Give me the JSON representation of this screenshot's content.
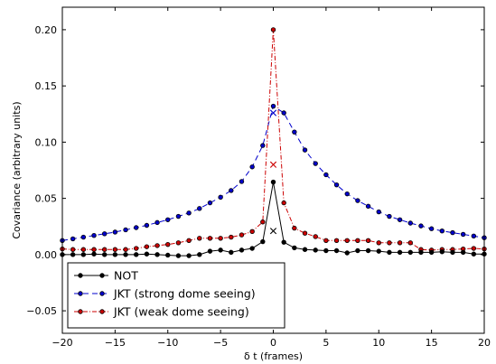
{
  "chart_data": {
    "type": "line",
    "title": "",
    "xlabel": "δ t (frames)",
    "ylabel": "Covariance (arbitrary units)",
    "xlim": [
      -20,
      20
    ],
    "ylim": [
      -0.07,
      0.22
    ],
    "xticks": [
      -20,
      -15,
      -10,
      -5,
      0,
      5,
      10,
      15,
      20
    ],
    "xtick_labels": [
      "−20",
      "−15",
      "−10",
      "−5",
      "0",
      "5",
      "10",
      "15",
      "20"
    ],
    "yticks": [
      -0.05,
      0.0,
      0.05,
      0.1,
      0.15,
      0.2
    ],
    "ytick_labels": [
      "−0.05",
      "0.00",
      "0.05",
      "0.10",
      "0.15",
      "0.20"
    ],
    "grid": false,
    "legend_position": "lower-left",
    "x": [
      -20,
      -19,
      -18,
      -17,
      -16,
      -15,
      -14,
      -13,
      -12,
      -11,
      -10,
      -9,
      -8,
      -7,
      -6,
      -5,
      -4,
      -3,
      -2,
      -1,
      0,
      1,
      2,
      3,
      4,
      5,
      6,
      7,
      8,
      9,
      10,
      11,
      12,
      13,
      14,
      15,
      16,
      17,
      18,
      19,
      20
    ],
    "series": [
      {
        "name": "NOT",
        "color": "#000000",
        "line_style": "solid",
        "values": [
          0.0,
          0.0,
          0.0,
          0.0005,
          0.0,
          0.0,
          0.0,
          0.0,
          0.0005,
          0.0,
          -0.0005,
          -0.001,
          -0.001,
          0.0,
          0.003,
          0.004,
          0.002,
          0.004,
          0.0055,
          0.0115,
          0.0645,
          0.011,
          0.006,
          0.0045,
          0.004,
          0.0035,
          0.0035,
          0.0015,
          0.0035,
          0.0035,
          0.003,
          0.002,
          0.002,
          0.002,
          0.002,
          0.002,
          0.0025,
          0.002,
          0.002,
          0.0005,
          0.0005
        ],
        "marker_value": 0.021
      },
      {
        "name": "JKT (strong dome seeing)",
        "color": "#0000cc",
        "line_style": "dashed",
        "values": [
          0.0125,
          0.014,
          0.0155,
          0.017,
          0.0185,
          0.02,
          0.022,
          0.024,
          0.026,
          0.0285,
          0.031,
          0.034,
          0.037,
          0.041,
          0.046,
          0.051,
          0.057,
          0.065,
          0.078,
          0.097,
          0.132,
          0.126,
          0.109,
          0.093,
          0.081,
          0.071,
          0.062,
          0.054,
          0.048,
          0.043,
          0.038,
          0.034,
          0.031,
          0.028,
          0.0255,
          0.023,
          0.021,
          0.0195,
          0.018,
          0.0165,
          0.015
        ],
        "marker_value": 0.126
      },
      {
        "name": "JKT (weak dome seeing)",
        "color": "#cc0000",
        "line_style": "dashdot",
        "values": [
          0.005,
          0.0045,
          0.0045,
          0.0045,
          0.0045,
          0.0045,
          0.0045,
          0.0055,
          0.007,
          0.008,
          0.009,
          0.0105,
          0.0125,
          0.0145,
          0.0145,
          0.0145,
          0.0155,
          0.0175,
          0.0205,
          0.029,
          0.2,
          0.046,
          0.0235,
          0.019,
          0.016,
          0.0125,
          0.0125,
          0.0125,
          0.0125,
          0.0125,
          0.0105,
          0.0105,
          0.0105,
          0.0105,
          0.0045,
          0.004,
          0.0045,
          0.0045,
          0.005,
          0.0055,
          0.005
        ],
        "marker_value": 0.08
      }
    ]
  }
}
